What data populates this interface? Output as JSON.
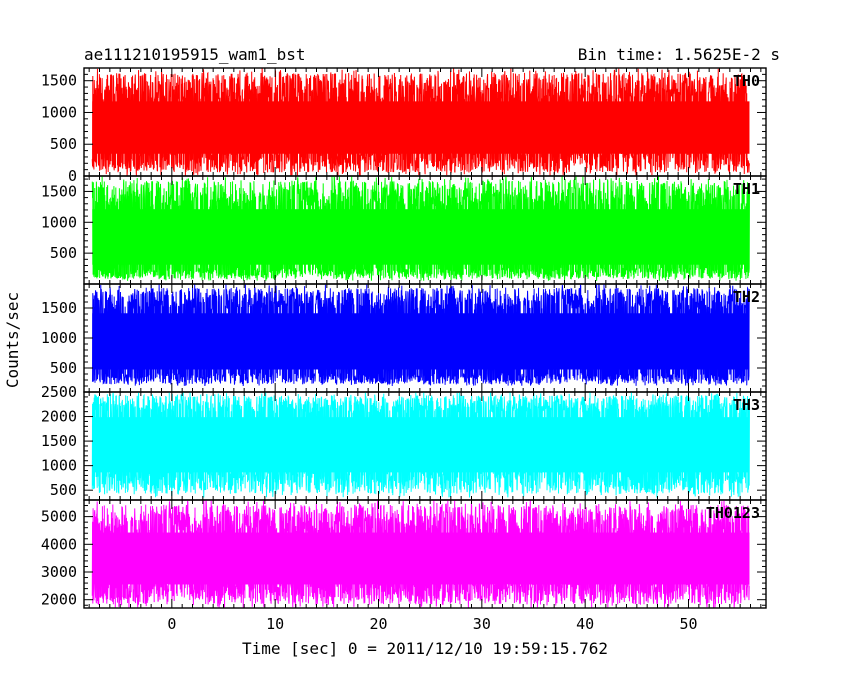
{
  "header": {
    "title": "ae111210195915_wam1_bst",
    "bin_time": "Bin time: 1.5625E-2 s"
  },
  "axes": {
    "ylabel": "Counts/sec",
    "xlabel": "Time [sec] 0 = 2011/12/10 19:59:15.762"
  },
  "chart_data": {
    "type": "line",
    "title": "ae111210195915_wam1_bst",
    "subtitle": "Bin time: 1.5625E-2 s",
    "xlabel": "Time [sec] 0 = 2011/12/10 19:59:15.762",
    "ylabel": "Counts/sec",
    "xlim": [
      -8.5,
      57.5
    ],
    "data_range_x": [
      -7.7,
      55.9
    ],
    "x_ticks": [
      0,
      10,
      20,
      30,
      40,
      50
    ],
    "x_tick_labels": [
      "0",
      "10",
      "20",
      "30",
      "40",
      "50"
    ],
    "grid": false,
    "panels": [
      {
        "name": "TH0",
        "color": "#ff0000",
        "ylim": [
          0,
          1700
        ],
        "y_ticks": [
          0,
          500,
          1000,
          1500
        ],
        "y_tick_labels": [
          "0",
          "500",
          "1000",
          "1500"
        ],
        "baseline": 650,
        "upper_envelope": 1350,
        "lower_envelope": 250,
        "max": 1700,
        "min": 0
      },
      {
        "name": "TH1",
        "color": "#00ff00",
        "ylim": [
          0,
          1750
        ],
        "y_ticks": [
          500,
          1000,
          1500
        ],
        "y_tick_labels": [
          "500",
          "1000",
          "1500"
        ],
        "baseline": 650,
        "upper_envelope": 1400,
        "lower_envelope": 200,
        "max": 1750,
        "min": 50
      },
      {
        "name": "TH2",
        "color": "#0000ff",
        "ylim": [
          100,
          1900
        ],
        "y_ticks": [
          500,
          1000,
          1500
        ],
        "y_tick_labels": [
          "500",
          "1000",
          "1500"
        ],
        "baseline": 850,
        "upper_envelope": 1600,
        "lower_envelope": 350,
        "max": 1900,
        "min": 200
      },
      {
        "name": "TH3",
        "color": "#00ffff",
        "ylim": [
          300,
          2500
        ],
        "y_ticks": [
          500,
          1000,
          1500,
          2000,
          2500
        ],
        "y_tick_labels": [
          "500",
          "1000",
          "1500",
          "2000",
          "2500"
        ],
        "baseline": 1350,
        "upper_envelope": 2200,
        "lower_envelope": 700,
        "max": 2500,
        "min": 350
      },
      {
        "name": "TH0123",
        "color": "#ff00ff",
        "ylim": [
          1700,
          5600
        ],
        "y_ticks": [
          2000,
          3000,
          4000,
          5000
        ],
        "y_tick_labels": [
          "2000",
          "3000",
          "4000",
          "5000"
        ],
        "baseline": 3300,
        "upper_envelope": 4800,
        "lower_envelope": 2300,
        "max": 5600,
        "min": 1700
      }
    ]
  }
}
